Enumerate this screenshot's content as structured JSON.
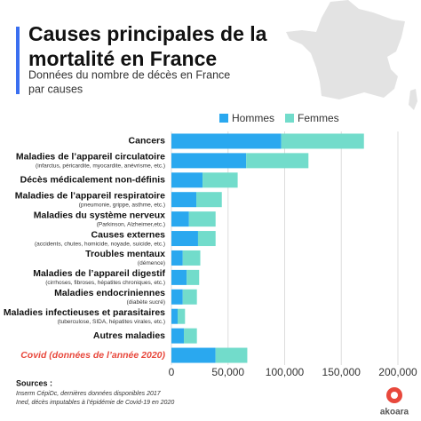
{
  "chart_data": {
    "type": "stacked-bar-horizontal",
    "title_lines": [
      "Causes principales de la",
      "mortalité en France"
    ],
    "subtitle_lines": [
      "Données du nombre de décès en France",
      "par causes"
    ],
    "categories": [
      "Cancers",
      "Maladies de l’appareil circulatoire",
      "Décès médicalement non-définis",
      "Maladies de l’appareil respiratoire",
      "Maladies du système nerveux",
      "Causes externes",
      "Troubles mentaux",
      "Maladies de l’appareil digestif",
      "Maladies endocriniennes",
      "Maladies infectieuses et parasitaires",
      "Autres maladies",
      "Covid (données de l’année 2020)"
    ],
    "category_notes": [
      null,
      "(infarctus, péricardite, myocardite, anévrisme, etc.)",
      null,
      "(pneumonie, grippe, asthme, etc.)",
      "(Parkinson, Alzheimer,etc.)",
      "(accidents, chutes, homicide, noyade, suicide, etc.)",
      "(démence)",
      "(cirrhoses, fibroses, hépatites chroniques, etc.)",
      "(diabète sucré)",
      "(tuberculose, SIDA, hépatites virales, etc.)",
      null,
      null
    ],
    "highlight": {
      "index": 11,
      "color": "#e8483c"
    },
    "series": [
      {
        "name": "Hommes",
        "color": "#2aa8ef",
        "values": [
          97000,
          66000,
          27500,
          22000,
          15500,
          23500,
          10000,
          13500,
          10000,
          5500,
          11000,
          39000
        ]
      },
      {
        "name": "Femmes",
        "color": "#72dccb",
        "values": [
          73000,
          55000,
          31000,
          22500,
          23500,
          15500,
          15500,
          11000,
          12500,
          6500,
          11500,
          28000
        ]
      }
    ],
    "xlim": [
      0,
      200000
    ],
    "xticks": [
      0,
      {
        "value": 50000,
        "label": "50,000"
      },
      {
        "value": 100000,
        "label": "100,000"
      },
      {
        "value": 150000,
        "label": "150,000"
      },
      {
        "value": 200000,
        "label": "200,000"
      }
    ],
    "grid": true,
    "sources": {
      "title": "Sources :",
      "lines": [
        "Inserm CépiDc, dernières données disponibles 2017",
        "Ined, décès imputables à l’épidémie de Covid-19 en 2020"
      ]
    },
    "logo": "akoara"
  }
}
